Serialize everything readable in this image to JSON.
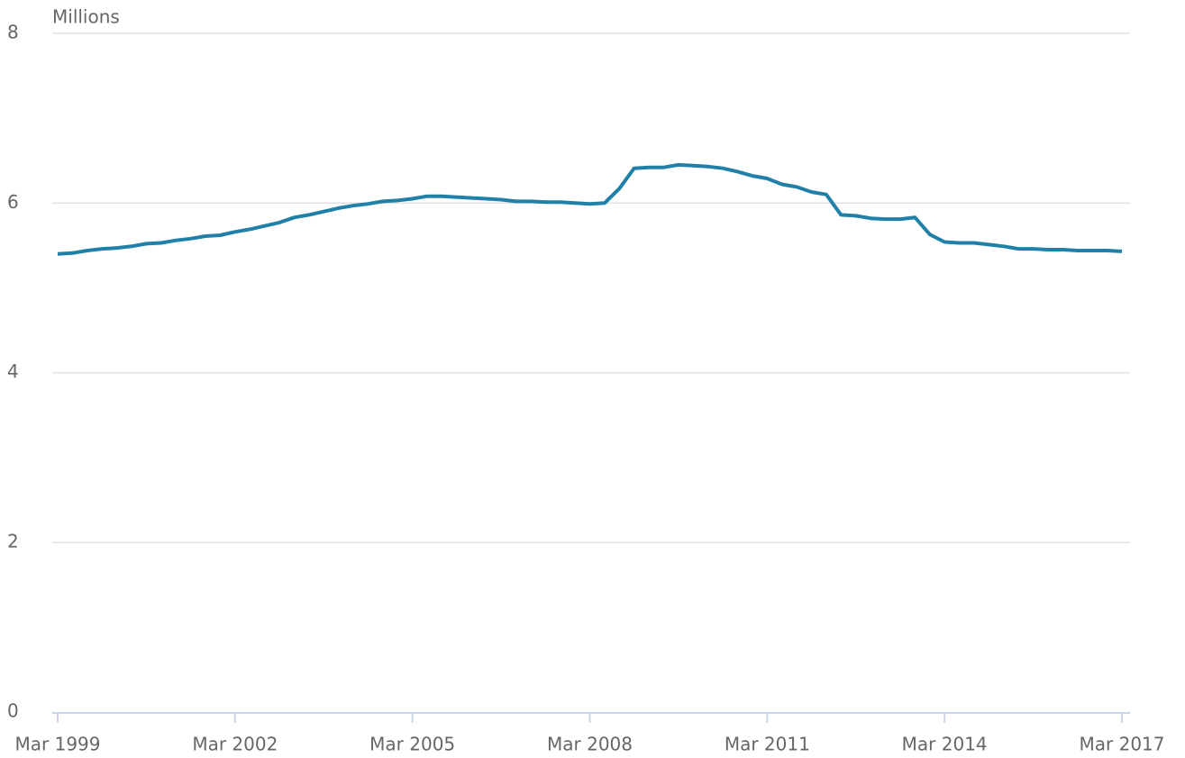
{
  "chart_data": {
    "type": "line",
    "y_label": "Millions",
    "categories": [
      "Mar 1999",
      null,
      null,
      null,
      null,
      null,
      null,
      null,
      null,
      null,
      null,
      null,
      "Mar 2002",
      null,
      null,
      null,
      null,
      null,
      null,
      null,
      null,
      null,
      null,
      null,
      "Mar 2005",
      null,
      null,
      null,
      null,
      null,
      null,
      null,
      null,
      null,
      null,
      null,
      "Mar 2008",
      null,
      null,
      null,
      null,
      null,
      null,
      null,
      null,
      null,
      null,
      null,
      "Mar 2011",
      null,
      null,
      null,
      null,
      null,
      null,
      null,
      null,
      null,
      null,
      null,
      "Mar 2014",
      null,
      null,
      null,
      null,
      null,
      null,
      null,
      null,
      null,
      null,
      null,
      "Mar 2017"
    ],
    "series": [
      {
        "color": "#2080a8",
        "values": [
          5.4,
          5.41,
          5.44,
          5.46,
          5.47,
          5.49,
          5.52,
          5.53,
          5.56,
          5.58,
          5.61,
          5.62,
          5.66,
          5.69,
          5.73,
          5.77,
          5.83,
          5.86,
          5.9,
          5.94,
          5.97,
          5.99,
          6.02,
          6.03,
          6.05,
          6.08,
          6.08,
          6.07,
          6.06,
          6.05,
          6.04,
          6.02,
          6.02,
          6.01,
          6.01,
          6.0,
          5.99,
          6.0,
          6.17,
          6.41,
          6.42,
          6.42,
          6.45,
          6.44,
          6.43,
          6.41,
          6.37,
          6.32,
          6.29,
          6.22,
          6.19,
          6.13,
          6.1,
          5.86,
          5.85,
          5.82,
          5.81,
          5.81,
          5.83,
          5.63,
          5.54,
          5.53,
          5.53,
          5.51,
          5.49,
          5.46,
          5.46,
          5.45,
          5.45,
          5.44,
          5.44,
          5.44,
          5.43
        ]
      }
    ],
    "ylim": [
      0,
      8
    ],
    "yticks": [
      0,
      2,
      4,
      6,
      8
    ],
    "grid": true
  }
}
